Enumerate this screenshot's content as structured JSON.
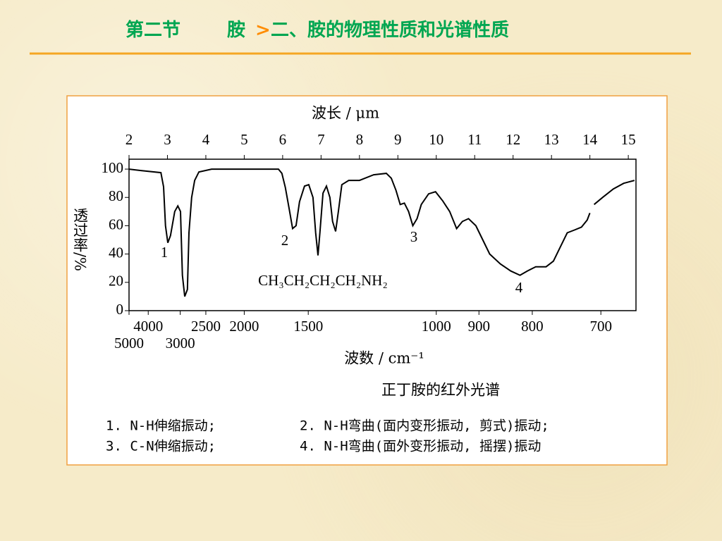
{
  "header": {
    "section": "第二节",
    "prefix": "胺",
    "arrow": ">",
    "title": "二、胺的物理性质和光谱性质"
  },
  "chart_data": {
    "type": "line",
    "title": "正丁胺的红外光谱",
    "x_top_label": "波长 / μm",
    "xlabel": "波数 / cm⁻¹",
    "ylabel": "透过率/%",
    "formula": "CH₃CH₂CH₂CH₂NH₂",
    "xlim": [
      2,
      15.2
    ],
    "xticks": [
      2,
      3,
      4,
      5,
      6,
      7,
      8,
      9,
      10,
      11,
      12,
      13,
      14,
      15
    ],
    "x2ticks": [
      5000,
      4000,
      3000,
      2500,
      2000,
      1500,
      1000,
      900,
      800,
      700
    ],
    "ylim": [
      0,
      107
    ],
    "yticks": [
      0,
      20,
      40,
      60,
      80,
      100
    ],
    "x": [
      2.0,
      2.31,
      2.83,
      2.9,
      2.95,
      3.01,
      3.08,
      3.19,
      3.27,
      3.34,
      3.39,
      3.45,
      3.52,
      3.56,
      3.63,
      3.71,
      3.82,
      4.15,
      4.51,
      5.89,
      5.98,
      6.07,
      6.17,
      6.26,
      6.35,
      6.44,
      6.57,
      6.68,
      6.79,
      6.86,
      6.92,
      6.97,
      7.05,
      7.14,
      7.23,
      7.3,
      7.38,
      7.45,
      7.54,
      7.72,
      8.0,
      8.37,
      8.7,
      8.83,
      8.95,
      9.06,
      9.17,
      9.28,
      9.39,
      9.5,
      9.61,
      9.8,
      9.98,
      10.17,
      10.35,
      10.53,
      10.68,
      10.84,
      11.03,
      11.21,
      11.39,
      11.67,
      11.94,
      12.18,
      12.37,
      12.59,
      12.86,
      13.05,
      13.23,
      13.41,
      13.6,
      13.78,
      13.93,
      14.0,
      14.05,
      14.11,
      14.33,
      14.61,
      14.88,
      15.16
    ],
    "series": [
      {
        "color": "#000000",
        "values": [
          100,
          99,
          97.5,
          87.5,
          60,
          48,
          53,
          70,
          74,
          70,
          25,
          10,
          15,
          55,
          80,
          92,
          98,
          100,
          100,
          100,
          97,
          87,
          72,
          58,
          60,
          77,
          88,
          89,
          80,
          55,
          39,
          55,
          83,
          88,
          80,
          63,
          56,
          70,
          89,
          92,
          92,
          96,
          97,
          93.5,
          85,
          75,
          76,
          70,
          60,
          65,
          75,
          82.5,
          84,
          77.5,
          70,
          58,
          63,
          65,
          60,
          50,
          40,
          33,
          28,
          25,
          28,
          31,
          31,
          35,
          45,
          55,
          57,
          59,
          64,
          69,
          null,
          75,
          80,
          86,
          90,
          92
        ]
      }
    ],
    "peak_labels": [
      "1",
      "2",
      "3",
      "4"
    ],
    "notes": [
      "1. N-H伸缩振动;",
      "2. N-H弯曲(面内变形振动, 剪式)振动;",
      "3. C-N伸缩振动;",
      "4. N-H弯曲(面外变形振动, 摇摆)振动"
    ]
  }
}
